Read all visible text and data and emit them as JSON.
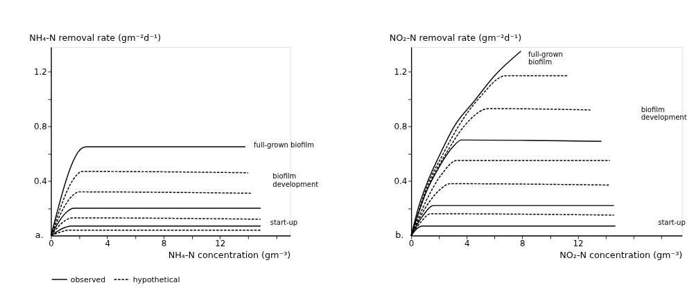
{
  "chart_data": [
    {
      "type": "line",
      "ylabel": "NH₄-N removal rate (gm⁻²d⁻¹)",
      "xlabel": "NH₄-N concentration (gm⁻³)",
      "xlim": [
        0,
        17
      ],
      "ylim": [
        0,
        1.38
      ],
      "xticks": [
        0,
        {
          "value": 2,
          "label": null
        },
        4,
        {
          "value": 6,
          "label": null
        },
        8,
        {
          "value": 10,
          "label": null
        },
        12,
        {
          "value": 14,
          "label": null
        },
        {
          "value": 16,
          "label": null
        }
      ],
      "yticks": [
        {
          "value": 0.2,
          "label": null
        },
        0.4,
        {
          "value": 0.6,
          "label": null
        },
        0.8,
        {
          "value": 1.0,
          "label": null
        },
        1.2
      ],
      "grid": false,
      "legend": "bottom",
      "marker": "none",
      "series": [
        {
          "name": "observed",
          "color": "#000000",
          "line_style": "solid",
          "x": [
            0,
            2.2,
            2.5,
            13.8
          ],
          "values": [
            0,
            0.64,
            0.65,
            0.65
          ]
        },
        {
          "name": "hypothetical",
          "color": "#000000",
          "line_style": "dashed",
          "x": [
            0,
            1.8,
            2.2,
            14.0
          ],
          "values": [
            0,
            0.44,
            0.47,
            0.46
          ]
        },
        {
          "color": "#000000",
          "line_style": "dashed",
          "x": [
            0,
            1.5,
            2.0,
            14.2
          ],
          "values": [
            0,
            0.29,
            0.32,
            0.31
          ]
        },
        {
          "color": "#000000",
          "line_style": "solid",
          "x": [
            0,
            1.2,
            1.6,
            14.9
          ],
          "values": [
            0,
            0.18,
            0.2,
            0.2
          ]
        },
        {
          "color": "#000000",
          "line_style": "dashed",
          "x": [
            0,
            1.0,
            1.5,
            14.9
          ],
          "values": [
            0,
            0.11,
            0.13,
            0.12
          ]
        },
        {
          "color": "#000000",
          "line_style": "solid",
          "x": [
            0,
            1.0,
            1.4,
            14.9
          ],
          "values": [
            0,
            0.06,
            0.07,
            0.07
          ]
        },
        {
          "color": "#000000",
          "line_style": "dashed",
          "x": [
            0,
            0.8,
            1.2,
            14.9
          ],
          "values": [
            0,
            0.03,
            0.04,
            0.04
          ]
        }
      ],
      "annotations": [
        "a.",
        "full-grown biofilm",
        "biofilm\ndevelopment",
        "start-up"
      ]
    },
    {
      "type": "line",
      "ylabel": "NO₂-N removal rate (gm⁻²d⁻¹)",
      "xlabel": "NO₂-N concentration (gm⁻³)",
      "xlim": [
        0,
        19.5
      ],
      "ylim": [
        0,
        1.38
      ],
      "xticks": [
        0,
        {
          "value": 2,
          "label": null
        },
        4,
        {
          "value": 6,
          "label": null
        },
        8,
        {
          "value": 10,
          "label": null
        },
        12,
        {
          "value": 14,
          "label": null
        },
        {
          "value": 16,
          "label": null
        },
        {
          "value": 18,
          "label": null
        }
      ],
      "yticks": [
        {
          "value": 0.2,
          "label": null
        },
        0.4,
        {
          "value": 0.6,
          "label": null
        },
        0.8,
        {
          "value": 1.0,
          "label": null
        },
        1.2
      ],
      "grid": false,
      "marker": "none",
      "series": [
        {
          "color": "#000000",
          "line_style": "solid",
          "x": [
            0,
            0.5,
            1.2,
            2,
            3.1,
            4.5,
            6,
            7.9
          ],
          "values": [
            0,
            0.2,
            0.4,
            0.58,
            0.8,
            0.98,
            1.17,
            1.35
          ]
        },
        {
          "color": "#000000",
          "line_style": "dashed",
          "x": [
            0,
            1.3,
            2.2,
            3.4,
            5,
            6.8,
            11.3
          ],
          "values": [
            0,
            0.4,
            0.58,
            0.8,
            1.02,
            1.17,
            1.17
          ]
        },
        {
          "color": "#000000",
          "line_style": "dashed",
          "x": [
            0,
            1.4,
            2.5,
            3.8,
            5.6,
            12.9
          ],
          "values": [
            0,
            0.4,
            0.6,
            0.8,
            0.93,
            0.92
          ]
        },
        {
          "color": "#000000",
          "line_style": "solid",
          "x": [
            0,
            1,
            2,
            3,
            3.6,
            13.7
          ],
          "values": [
            0,
            0.3,
            0.5,
            0.65,
            0.7,
            0.69
          ]
        },
        {
          "color": "#000000",
          "line_style": "dashed",
          "x": [
            0,
            1.1,
            2.2,
            3.3,
            14.3
          ],
          "values": [
            0,
            0.26,
            0.45,
            0.55,
            0.55
          ]
        },
        {
          "color": "#000000",
          "line_style": "dashed",
          "x": [
            0,
            1,
            2,
            2.8,
            14.3
          ],
          "values": [
            0,
            0.2,
            0.33,
            0.38,
            0.37
          ]
        },
        {
          "color": "#000000",
          "line_style": "solid",
          "x": [
            0,
            0.8,
            1.6,
            14.6
          ],
          "values": [
            0,
            0.14,
            0.22,
            0.22
          ]
        },
        {
          "color": "#000000",
          "line_style": "dashed",
          "x": [
            0,
            0.7,
            1.4,
            14.6
          ],
          "values": [
            0,
            0.1,
            0.16,
            0.15
          ]
        },
        {
          "color": "#000000",
          "line_style": "solid",
          "x": [
            0,
            0.4,
            0.8,
            14.7
          ],
          "values": [
            0,
            0.05,
            0.07,
            0.07
          ]
        }
      ],
      "annotations": [
        "b.",
        "full-grown\nbiofilm",
        "biofilm\ndevelopment",
        "start-up"
      ]
    }
  ]
}
